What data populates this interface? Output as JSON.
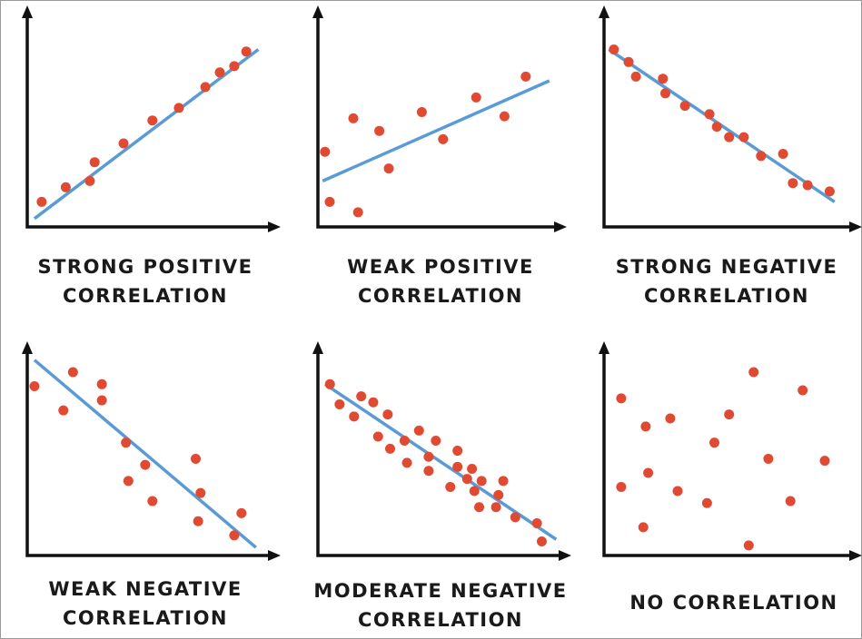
{
  "chart_data": [
    {
      "type": "scatter",
      "title": [
        "STRONG POSITIVE",
        "CORRELATION"
      ],
      "color": "#e04a33",
      "line_color": "#5b9bd5",
      "xlim": [
        0,
        100
      ],
      "ylim": [
        0,
        100
      ],
      "x": [
        6,
        16,
        26,
        28,
        40,
        52,
        63,
        74,
        80,
        86,
        91
      ],
      "y": [
        12,
        19,
        22,
        31,
        40,
        51,
        57,
        67,
        74,
        77,
        84
      ],
      "trendline": {
        "x": [
          3,
          96
        ],
        "y": [
          4,
          85
        ]
      }
    },
    {
      "type": "scatter",
      "title": [
        "WEAK POSITIVE",
        "CORRELATION"
      ],
      "color": "#e04a33",
      "line_color": "#5b9bd5",
      "xlim": [
        0,
        100
      ],
      "ylim": [
        0,
        100
      ],
      "x": [
        3,
        5,
        15,
        17,
        26,
        30,
        44,
        53,
        67,
        79,
        88
      ],
      "y": [
        36,
        12,
        52,
        7,
        46,
        28,
        55,
        42,
        62,
        53,
        72
      ],
      "trendline": {
        "x": [
          2,
          98
        ],
        "y": [
          22,
          70
        ]
      }
    },
    {
      "type": "scatter",
      "title": [
        "STRONG NEGATIVE",
        "CORRELATION"
      ],
      "color": "#e04a33",
      "line_color": "#5b9bd5",
      "xlim": [
        0,
        100
      ],
      "ylim": [
        0,
        100
      ],
      "x": [
        4,
        10,
        13,
        24,
        25,
        33,
        43,
        46,
        51,
        57,
        64,
        73,
        77,
        83,
        92
      ],
      "y": [
        85,
        79,
        72,
        71,
        64,
        58,
        54,
        48,
        43,
        43,
        34,
        35,
        21,
        20,
        17
      ],
      "trendline": {
        "x": [
          2,
          94
        ],
        "y": [
          85,
          12
        ]
      }
    },
    {
      "type": "scatter",
      "title": [
        "WEAK NEGATIVE",
        "CORRELATION"
      ],
      "color": "#e04a33",
      "line_color": "#5b9bd5",
      "xlim": [
        0,
        100
      ],
      "ylim": [
        0,
        100
      ],
      "x": [
        3,
        15,
        19,
        31,
        31,
        41,
        42,
        49,
        52,
        70,
        72,
        71,
        89,
        86
      ],
      "y": [
        84,
        72,
        91,
        85,
        77,
        56,
        37,
        45,
        27,
        48,
        31,
        17,
        21,
        10
      ],
      "trendline": {
        "x": [
          3,
          95
        ],
        "y": [
          97,
          4
        ]
      }
    },
    {
      "type": "scatter",
      "title": [
        "MODERATE NEGATIVE",
        "CORRELATION"
      ],
      "color": "#e04a33",
      "line_color": "#5b9bd5",
      "xlim": [
        0,
        100
      ],
      "ylim": [
        0,
        100
      ],
      "x": [
        5,
        9,
        15,
        18,
        23,
        29,
        25,
        30,
        36,
        37,
        42,
        46,
        46,
        49,
        55,
        58,
        58,
        62,
        64,
        65,
        68,
        67,
        74,
        75,
        77,
        82,
        91,
        93
      ],
      "y": [
        85,
        75,
        69,
        79,
        76,
        70,
        59,
        53,
        57,
        46,
        62,
        49,
        42,
        57,
        34,
        52,
        44,
        38,
        43,
        32,
        37,
        24,
        24,
        30,
        37,
        19,
        16,
        7
      ],
      "trendline": {
        "x": [
          3,
          99
        ],
        "y": [
          85,
          8
        ]
      }
    },
    {
      "type": "scatter",
      "title": [
        "NO CORRELATION"
      ],
      "color": "#e04a33",
      "xlim": [
        0,
        100
      ],
      "ylim": [
        0,
        100
      ],
      "x": [
        7,
        17,
        27,
        61,
        81,
        7,
        18,
        30,
        45,
        51,
        67,
        90,
        16,
        42,
        76,
        59
      ],
      "y": [
        78,
        64,
        68,
        91,
        82,
        34,
        41,
        32,
        56,
        70,
        48,
        47,
        14,
        26,
        27,
        5
      ]
    }
  ]
}
